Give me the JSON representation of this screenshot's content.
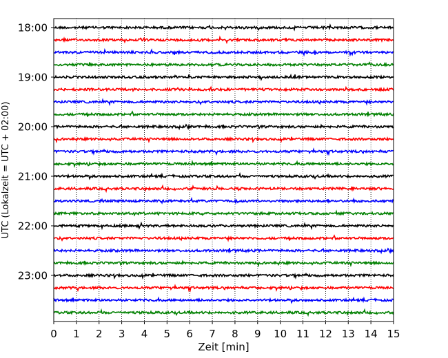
{
  "chart_data": {
    "type": "line",
    "title": "",
    "xlabel": "Zeit  [min]",
    "ylabel": "UTC (Lokalzeit = UTC + 02:00)",
    "xlim": [
      0,
      15
    ],
    "x_ticks": [
      "0",
      "1",
      "2",
      "3",
      "4",
      "5",
      "6",
      "7",
      "8",
      "9",
      "10",
      "11",
      "12",
      "13",
      "14",
      "15"
    ],
    "y_ticks": [
      "18:00",
      "19:00",
      "20:00",
      "21:00",
      "22:00",
      "23:00"
    ],
    "grid": "vertical dotted",
    "trace_interval_min": 15,
    "start_time": "18:00",
    "end_time": "23:45",
    "colors": [
      "#000000",
      "#ff0000",
      "#0000ff",
      "#008000"
    ],
    "traces": [
      {
        "start": "18:00",
        "color": "#000000"
      },
      {
        "start": "18:15",
        "color": "#ff0000"
      },
      {
        "start": "18:30",
        "color": "#0000ff"
      },
      {
        "start": "18:45",
        "color": "#008000"
      },
      {
        "start": "19:00",
        "color": "#000000"
      },
      {
        "start": "19:15",
        "color": "#ff0000"
      },
      {
        "start": "19:30",
        "color": "#0000ff"
      },
      {
        "start": "19:45",
        "color": "#008000"
      },
      {
        "start": "20:00",
        "color": "#000000"
      },
      {
        "start": "20:15",
        "color": "#ff0000"
      },
      {
        "start": "20:30",
        "color": "#0000ff"
      },
      {
        "start": "20:45",
        "color": "#008000"
      },
      {
        "start": "21:00",
        "color": "#000000"
      },
      {
        "start": "21:15",
        "color": "#ff0000"
      },
      {
        "start": "21:30",
        "color": "#0000ff"
      },
      {
        "start": "21:45",
        "color": "#008000"
      },
      {
        "start": "22:00",
        "color": "#000000"
      },
      {
        "start": "22:15",
        "color": "#ff0000"
      },
      {
        "start": "22:30",
        "color": "#0000ff"
      },
      {
        "start": "22:45",
        "color": "#008000"
      },
      {
        "start": "23:00",
        "color": "#000000"
      },
      {
        "start": "23:15",
        "color": "#ff0000"
      },
      {
        "start": "23:30",
        "color": "#0000ff"
      },
      {
        "start": "23:45",
        "color": "#008000"
      }
    ]
  }
}
